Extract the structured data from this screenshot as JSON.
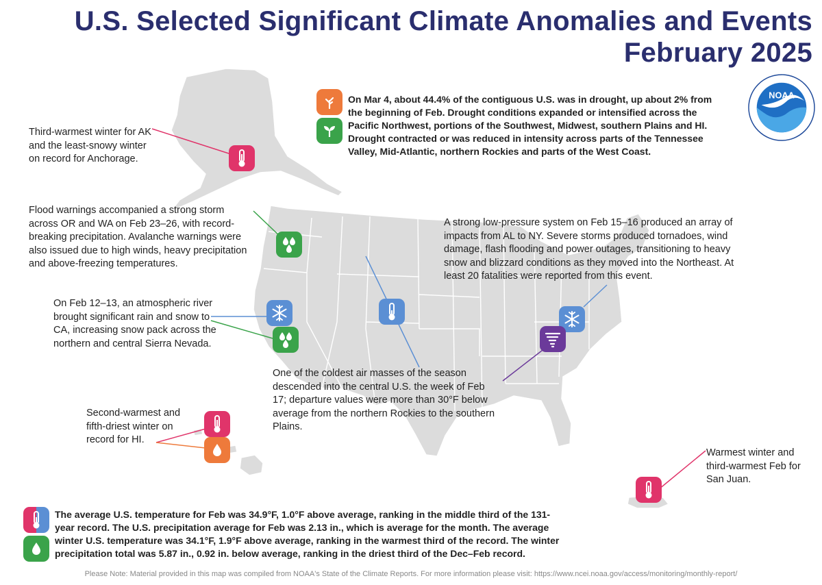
{
  "title": {
    "line1": "U.S. Selected Significant Climate Anomalies and Events",
    "line2": "February 2025"
  },
  "logo": {
    "text": "NOAA",
    "ring_text": "NATIONAL OCEANIC AND ATMOSPHERIC ADMINISTRATION · U.S. DEPARTMENT OF COMMERCE"
  },
  "annotations": {
    "drought": "On Mar 4, about 44.4% of the contiguous U.S. was in drought, up about 2% from the beginning of Feb. Drought conditions expanded or intensified across the Pacific Northwest, portions of the Southwest, Midwest, southern Plains and HI. Drought contracted or was reduced in intensity across parts of the Tennessee Valley, Mid-Atlantic, northern Rockies and parts of the West Coast.",
    "alaska": "Third-warmest winter for AK and the least-snowy winter on record for Anchorage.",
    "flood": "Flood warnings accompanied a strong storm across OR and WA on Feb 23–26, with record-breaking precipitation. Avalanche warnings were also issued due to high winds, heavy precipitation and above-freezing temperatures.",
    "storm": "A strong low-pressure system on Feb 15–16 produced an array of impacts from AL to NY. Severe storms produced tornadoes, wind damage, flash flooding and power outages, transitioning to heavy snow and blizzard conditions as they moved into the Northeast. At least 20 fatalities were reported from this event.",
    "river": "On Feb 12–13, an atmospheric river brought significant rain and snow to CA, increasing snow pack across the northern and central Sierra Nevada.",
    "cold": "One of the coldest air masses of the season descended into the central U.S. the week of Feb 17; departure values were more than 30°F below average from the northern Rockies to the southern Plains.",
    "hawaii": "Second-warmest and fifth-driest winter on record for HI.",
    "sanjuan": "Warmest winter and third-warmest Feb for San Juan.",
    "summary": "The average U.S. temperature for Feb was 34.9°F, 1.0°F above average, ranking in the middle third of the 131-year record. The U.S. precipitation average for Feb was 2.13 in., which is average for the month. The average winter U.S. temperature was 34.1°F, 1.9°F above average, ranking in the warmest third of the record. The winter precipitation total was 5.87 in., 0.92 in. below average, ranking in the driest third of the Dec–Feb record."
  },
  "footnote": "Please Note: Material provided in this map was compiled from NOAA's State of the Climate Reports. For more information please visit: https://www.ncei.noaa.gov/access/monitoring/monthly-report/",
  "colors": {
    "title": "#2a2e6e",
    "temperature": "#e0346a",
    "precipitation": "#3aa34a",
    "snow": "#5b8fd4",
    "drought": "#ee7a3b",
    "tornado": "#6b3a9a",
    "land": "#dcdcdc"
  }
}
